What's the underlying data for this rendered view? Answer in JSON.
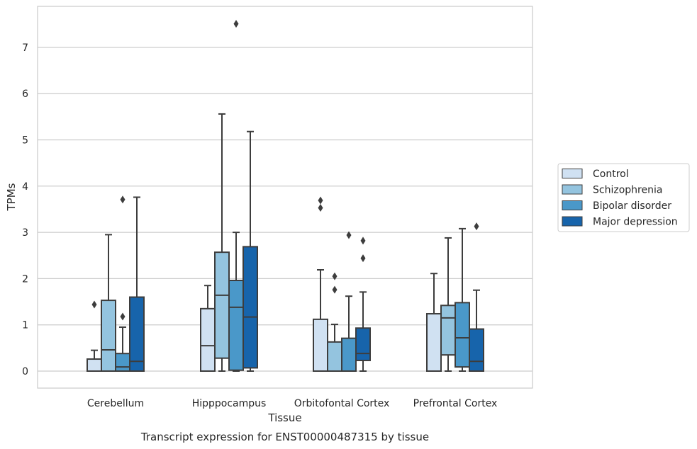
{
  "chart_data": {
    "type": "box",
    "title": "",
    "caption": "Transcript expression for ENST00000487315 by tissue",
    "xlabel": "Tissue",
    "ylabel": "TPMs",
    "ylim": [
      -0.37,
      7.9
    ],
    "yticks": [
      0,
      1,
      2,
      3,
      4,
      5,
      6,
      7
    ],
    "grid": "horizontal",
    "legend_position": "right",
    "categories": [
      "Cerebellum",
      "Hipppocampus",
      "Orbitofontal Cortex",
      "Prefrontal Cortex"
    ],
    "series": [
      {
        "name": "Control",
        "color": "#d0e1f2",
        "boxes": [
          {
            "q1": 0,
            "median": 0,
            "q3": 0.26,
            "whisker_low": 0,
            "whisker_high": 0.45,
            "outliers": [
              1.44
            ]
          },
          {
            "q1": 0,
            "median": 0.55,
            "q3": 1.35,
            "whisker_low": 0,
            "whisker_high": 1.85,
            "outliers": []
          },
          {
            "q1": 0,
            "median": 0,
            "q3": 1.12,
            "whisker_low": 0,
            "whisker_high": 2.19,
            "outliers": [
              3.53,
              3.69
            ]
          },
          {
            "q1": 0,
            "median": 0,
            "q3": 1.24,
            "whisker_low": 0,
            "whisker_high": 2.11,
            "outliers": []
          }
        ]
      },
      {
        "name": "Schizophrenia",
        "color": "#94c4df",
        "boxes": [
          {
            "q1": 0,
            "median": 0.46,
            "q3": 1.53,
            "whisker_low": 0,
            "whisker_high": 2.95,
            "outliers": []
          },
          {
            "q1": 0.28,
            "median": 1.64,
            "q3": 2.57,
            "whisker_low": 0,
            "whisker_high": 5.56,
            "outliers": []
          },
          {
            "q1": 0,
            "median": 0,
            "q3": 0.63,
            "whisker_low": 0,
            "whisker_high": 1.01,
            "outliers": [
              1.76,
              2.05
            ]
          },
          {
            "q1": 0.35,
            "median": 1.15,
            "q3": 1.42,
            "whisker_low": 0,
            "whisker_high": 2.88,
            "outliers": []
          }
        ]
      },
      {
        "name": "Bipolar disorder",
        "color": "#4a98c9",
        "boxes": [
          {
            "q1": 0,
            "median": 0.09,
            "q3": 0.38,
            "whisker_low": 0,
            "whisker_high": 0.95,
            "outliers": [
              1.18,
              3.71
            ]
          },
          {
            "q1": 0.02,
            "median": 1.38,
            "q3": 1.96,
            "whisker_low": 0,
            "whisker_high": 3.0,
            "outliers": [
              7.51
            ]
          },
          {
            "q1": 0,
            "median": 0,
            "q3": 0.71,
            "whisker_low": 0,
            "whisker_high": 1.62,
            "outliers": [
              2.94
            ]
          },
          {
            "q1": 0.09,
            "median": 0.72,
            "q3": 1.48,
            "whisker_low": 0,
            "whisker_high": 3.08,
            "outliers": []
          }
        ]
      },
      {
        "name": "Major depression",
        "color": "#1764ab",
        "boxes": [
          {
            "q1": 0,
            "median": 0.21,
            "q3": 1.6,
            "whisker_low": 0,
            "whisker_high": 3.76,
            "outliers": []
          },
          {
            "q1": 0.07,
            "median": 1.17,
            "q3": 2.69,
            "whisker_low": 0,
            "whisker_high": 5.18,
            "outliers": []
          },
          {
            "q1": 0.23,
            "median": 0.38,
            "q3": 0.93,
            "whisker_low": 0,
            "whisker_high": 1.71,
            "outliers": [
              2.44,
              2.82
            ]
          },
          {
            "q1": 0,
            "median": 0.21,
            "q3": 0.91,
            "whisker_low": 0,
            "whisker_high": 1.75,
            "outliers": [
              3.13
            ]
          }
        ]
      }
    ]
  }
}
